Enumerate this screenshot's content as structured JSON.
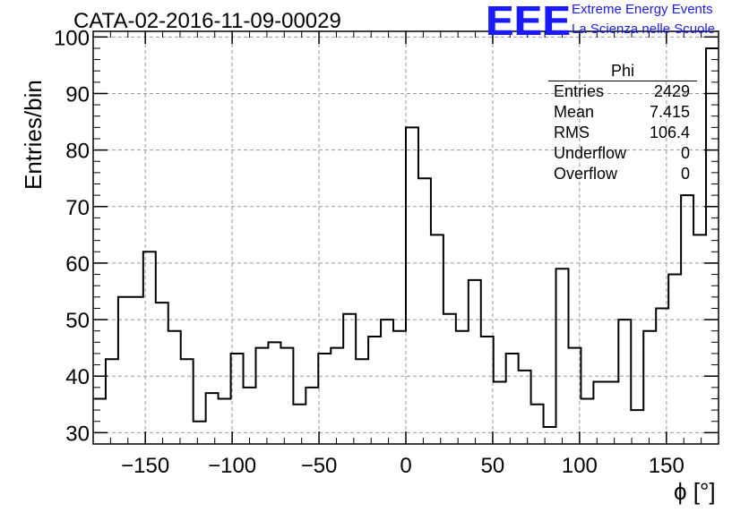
{
  "header": {
    "title": "CATA-02-2016-11-09-00029",
    "logo": "EEE",
    "brand_line1": "Extreme Energy Events",
    "brand_line2": "La Scienza nelle Scuole"
  },
  "stats": {
    "title": "Phi",
    "rows": [
      {
        "label": "Entries",
        "value": "2429"
      },
      {
        "label": "Mean",
        "value": "7.415"
      },
      {
        "label": "RMS",
        "value": "106.4"
      },
      {
        "label": "Underflow",
        "value": "0"
      },
      {
        "label": "Overflow",
        "value": "0"
      }
    ]
  },
  "colors": {
    "line": "#000000",
    "grid": "#999999",
    "brand": "#1a1aff"
  },
  "chart_data": {
    "type": "bar",
    "title": "CATA-02-2016-11-09-00029",
    "xlabel": "ϕ [°]",
    "ylabel": "Entries/bin",
    "xlim": [
      -180,
      180
    ],
    "ylim": [
      28,
      101
    ],
    "bin_width": 7.2,
    "grid": true,
    "x_ticks": [
      -150,
      -100,
      -50,
      0,
      50,
      100,
      150
    ],
    "x_tick_labels": [
      "−150",
      "−100",
      "−50",
      "0",
      "50",
      "100",
      "150"
    ],
    "y_ticks": [
      30,
      40,
      50,
      60,
      70,
      80,
      90,
      100
    ],
    "y_tick_labels": [
      "30",
      "40",
      "50",
      "60",
      "70",
      "80",
      "90",
      "100"
    ],
    "values": [
      36,
      43,
      54,
      54,
      62,
      53,
      48,
      43,
      32,
      37,
      36,
      44,
      38,
      45,
      46,
      45,
      35,
      38,
      44,
      45,
      51,
      43,
      47,
      50,
      48,
      84,
      75,
      65,
      51,
      48,
      57,
      47,
      39,
      44,
      41,
      35,
      31,
      59,
      45,
      36,
      39,
      39,
      50,
      34,
      48,
      52,
      58,
      72,
      65,
      98
    ]
  }
}
